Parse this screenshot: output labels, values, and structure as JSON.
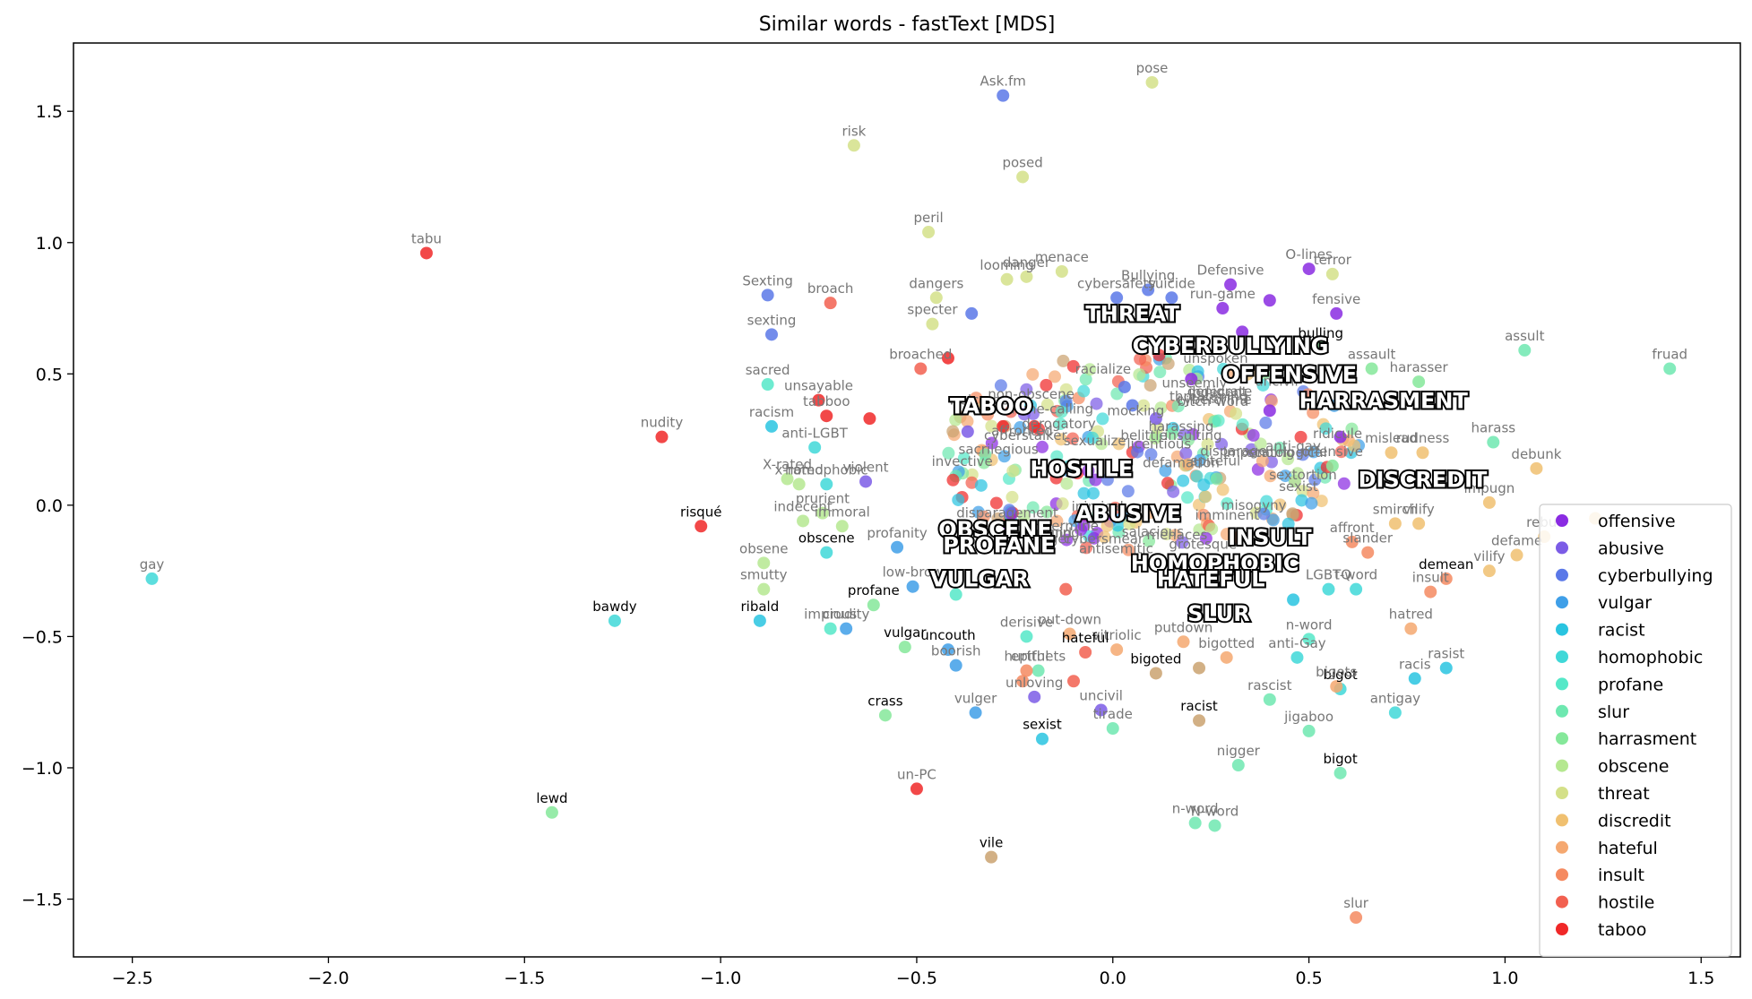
{
  "chart_data": {
    "type": "scatter",
    "title": "Similar words - fastText [MDS]",
    "xlabel": "",
    "ylabel": "",
    "xlim": [
      -2.65,
      1.6
    ],
    "ylim": [
      -1.72,
      1.76
    ],
    "x_ticks": [
      "−2.5",
      "−2.0",
      "−1.5",
      "−1.0",
      "−0.5",
      "0.0",
      "0.5",
      "1.0",
      "1.5"
    ],
    "x_tick_values": [
      -2.5,
      -2.0,
      -1.5,
      -1.0,
      -0.5,
      0.0,
      0.5,
      1.0,
      1.5
    ],
    "y_ticks": [
      "1.5",
      "1.0",
      "0.5",
      "0.0",
      "−0.5",
      "−1.0",
      "−1.5"
    ],
    "y_tick_values": [
      1.5,
      1.0,
      0.5,
      0.0,
      -0.5,
      -1.0,
      -1.5
    ],
    "grid": false,
    "legend_position": "lower-right",
    "series": [
      {
        "name": "offensive",
        "color": "#8a2be2",
        "points": [
          {
            "x": 0.57,
            "y": 0.73,
            "label": "fensive"
          },
          {
            "x": 0.3,
            "y": 0.84,
            "label": "Defensive"
          },
          {
            "x": 0.4,
            "y": 0.78,
            "label": ""
          },
          {
            "x": 0.28,
            "y": 0.75,
            "label": "run-game"
          },
          {
            "x": 0.33,
            "y": 0.66,
            "label": ""
          },
          {
            "x": 0.5,
            "y": 0.9,
            "label": "O-lines"
          },
          {
            "x": 0.58,
            "y": 0.26,
            "label": ""
          },
          {
            "x": 0.4,
            "y": 0.36,
            "label": ""
          },
          {
            "x": 0.19,
            "y": 0.62,
            "label": ""
          },
          {
            "x": 0.2,
            "y": 0.48,
            "label": ""
          }
        ]
      },
      {
        "name": "abusive",
        "color": "#7b5ce6",
        "points": [
          {
            "x": -0.63,
            "y": 0.09,
            "label": "violent"
          },
          {
            "x": -0.2,
            "y": -0.73,
            "label": "unloving"
          },
          {
            "x": -0.03,
            "y": -0.78,
            "label": "uncivil"
          },
          {
            "x": -0.37,
            "y": 0.28,
            "label": ""
          },
          {
            "x": 0.11,
            "y": 0.33,
            "label": ""
          }
        ]
      },
      {
        "name": "cyberbullying",
        "color": "#5a78e8",
        "points": [
          {
            "x": -0.28,
            "y": 1.56,
            "label": "Ask.fm"
          },
          {
            "x": -0.88,
            "y": 0.8,
            "label": "Sexting"
          },
          {
            "x": -0.87,
            "y": 0.65,
            "label": "sexting"
          },
          {
            "x": 0.01,
            "y": 0.79,
            "label": "cybersafety"
          },
          {
            "x": 0.09,
            "y": 0.82,
            "label": "Bullying"
          },
          {
            "x": 0.15,
            "y": 0.79,
            "label": "suicide"
          },
          {
            "x": 0.03,
            "y": 0.45,
            "label": ""
          },
          {
            "x": 0.05,
            "y": 0.38,
            "label": ""
          },
          {
            "x": -0.36,
            "y": 0.73,
            "label": ""
          }
        ]
      },
      {
        "name": "vulgar",
        "color": "#3f9fe8",
        "points": [
          {
            "x": -0.68,
            "y": -0.47,
            "label": "crudity"
          },
          {
            "x": -0.55,
            "y": -0.16,
            "label": "profanity"
          },
          {
            "x": -0.42,
            "y": -0.55,
            "label": "uncouth"
          },
          {
            "x": -0.4,
            "y": -0.61,
            "label": "boorish"
          },
          {
            "x": -0.35,
            "y": -0.79,
            "label": "vulger"
          },
          {
            "x": -0.51,
            "y": -0.31,
            "label": "low-brow"
          }
        ]
      },
      {
        "name": "racist",
        "color": "#29c4e0",
        "points": [
          {
            "x": -0.87,
            "y": 0.3,
            "label": "racism"
          },
          {
            "x": -0.9,
            "y": -0.44,
            "label": "ribald"
          },
          {
            "x": 0.77,
            "y": -0.66,
            "label": "racis"
          },
          {
            "x": 0.85,
            "y": -0.62,
            "label": "rasist"
          },
          {
            "x": 0.46,
            "y": -0.36,
            "label": ""
          },
          {
            "x": -0.18,
            "y": -0.89,
            "label": "sexist"
          }
        ]
      },
      {
        "name": "homophobic",
        "color": "#40d8d8",
        "points": [
          {
            "x": -2.45,
            "y": -0.28,
            "label": "gay"
          },
          {
            "x": -1.27,
            "y": -0.44,
            "label": "bawdy"
          },
          {
            "x": -0.76,
            "y": 0.22,
            "label": "anti-LGBT"
          },
          {
            "x": -0.73,
            "y": 0.08,
            "label": "homophobic"
          },
          {
            "x": -0.73,
            "y": -0.18,
            "label": "obscene"
          },
          {
            "x": 0.55,
            "y": -0.32,
            "label": "LGBTQ"
          },
          {
            "x": 0.58,
            "y": -0.7,
            "label": "bigot"
          },
          {
            "x": 0.72,
            "y": -0.79,
            "label": "antigay"
          },
          {
            "x": 0.47,
            "y": -0.58,
            "label": "anti-Gay"
          },
          {
            "x": 0.62,
            "y": -0.32,
            "label": "t-word"
          }
        ]
      },
      {
        "name": "profane",
        "color": "#55e8c8",
        "points": [
          {
            "x": -0.72,
            "y": -0.47,
            "label": "impious"
          },
          {
            "x": -0.88,
            "y": 0.46,
            "label": "sacred"
          },
          {
            "x": -0.4,
            "y": -0.34,
            "label": ""
          },
          {
            "x": -0.22,
            "y": -0.5,
            "label": "derisive"
          },
          {
            "x": 0.5,
            "y": -0.51,
            "label": "n-word"
          }
        ]
      },
      {
        "name": "slur",
        "color": "#6ee8b0",
        "points": [
          {
            "x": 1.05,
            "y": 0.59,
            "label": "assult"
          },
          {
            "x": 1.42,
            "y": 0.52,
            "label": "fruad"
          },
          {
            "x": 0.97,
            "y": 0.24,
            "label": "harass"
          },
          {
            "x": 0.4,
            "y": -0.74,
            "label": "rascist"
          },
          {
            "x": 0.5,
            "y": -0.86,
            "label": "jigaboo"
          },
          {
            "x": 0.32,
            "y": -0.99,
            "label": "nigger"
          },
          {
            "x": 0.21,
            "y": -1.21,
            "label": "n-word"
          },
          {
            "x": 0.26,
            "y": -1.22,
            "label": "N-word"
          },
          {
            "x": 0.58,
            "y": -1.02,
            "label": "bigot"
          },
          {
            "x": 0.0,
            "y": -0.85,
            "label": "tirade"
          },
          {
            "x": -0.19,
            "y": -0.63,
            "label": "epithets"
          }
        ]
      },
      {
        "name": "harrasment",
        "color": "#85e89a",
        "points": [
          {
            "x": -1.43,
            "y": -1.17,
            "label": "lewd"
          },
          {
            "x": -0.58,
            "y": -0.8,
            "label": "crass"
          },
          {
            "x": -0.61,
            "y": -0.38,
            "label": "profane"
          },
          {
            "x": -0.53,
            "y": -0.54,
            "label": "vulgar"
          },
          {
            "x": 0.78,
            "y": 0.47,
            "label": "harasser"
          },
          {
            "x": 0.66,
            "y": 0.52,
            "label": "assault"
          },
          {
            "x": 0.56,
            "y": 0.15,
            "label": "offensive"
          },
          {
            "x": 0.53,
            "y": 0.6,
            "label": "bulling"
          }
        ]
      },
      {
        "name": "obscene",
        "color": "#b5e890",
        "points": [
          {
            "x": -0.89,
            "y": -0.22,
            "label": "obsene"
          },
          {
            "x": -0.89,
            "y": -0.32,
            "label": "smutty"
          },
          {
            "x": -0.8,
            "y": 0.08,
            "label": "x-rated"
          },
          {
            "x": -0.83,
            "y": 0.1,
            "label": "X-rated"
          },
          {
            "x": -0.79,
            "y": -0.06,
            "label": "indecent"
          },
          {
            "x": -0.69,
            "y": -0.08,
            "label": "immoral"
          },
          {
            "x": -0.74,
            "y": -0.03,
            "label": "prurient"
          }
        ]
      },
      {
        "name": "threat",
        "color": "#d4e088",
        "points": [
          {
            "x": 0.1,
            "y": 1.61,
            "label": "pose"
          },
          {
            "x": -0.66,
            "y": 1.37,
            "label": "risk"
          },
          {
            "x": -0.23,
            "y": 1.25,
            "label": "posed"
          },
          {
            "x": -0.47,
            "y": 1.04,
            "label": "peril"
          },
          {
            "x": -0.13,
            "y": 0.89,
            "label": "menace"
          },
          {
            "x": -0.27,
            "y": 0.86,
            "label": "looming"
          },
          {
            "x": -0.22,
            "y": 0.87,
            "label": "danger"
          },
          {
            "x": -0.45,
            "y": 0.79,
            "label": "dangers"
          },
          {
            "x": -0.46,
            "y": 0.69,
            "label": "specter"
          },
          {
            "x": 0.56,
            "y": 0.88,
            "label": "terror"
          }
        ]
      },
      {
        "name": "discredit",
        "color": "#f0c070",
        "points": [
          {
            "x": 1.08,
            "y": 0.14,
            "label": "debunk"
          },
          {
            "x": 0.79,
            "y": 0.2,
            "label": "rudness"
          },
          {
            "x": 0.71,
            "y": 0.2,
            "label": "mislead"
          },
          {
            "x": 0.78,
            "y": -0.07,
            "label": "vilify"
          },
          {
            "x": 0.96,
            "y": 0.01,
            "label": "impugn"
          },
          {
            "x": 0.96,
            "y": -0.25,
            "label": "vilify"
          },
          {
            "x": 1.03,
            "y": -0.19,
            "label": "defame"
          },
          {
            "x": 1.1,
            "y": -0.12,
            "label": "rebut"
          },
          {
            "x": 1.23,
            "y": -0.05,
            "label": ""
          },
          {
            "x": 0.72,
            "y": -0.07,
            "label": "smirch"
          }
        ]
      },
      {
        "name": "hateful",
        "color": "#f5a870",
        "points": [
          {
            "x": 0.76,
            "y": -0.47,
            "label": "hatred"
          },
          {
            "x": 0.57,
            "y": -0.69,
            "label": "bigots"
          },
          {
            "x": 0.29,
            "y": -0.58,
            "label": "bigotted"
          },
          {
            "x": 0.18,
            "y": -0.52,
            "label": "putdown"
          },
          {
            "x": 0.01,
            "y": -0.55,
            "label": "vitriolic"
          },
          {
            "x": -0.11,
            "y": -0.49,
            "label": "put-down"
          }
        ]
      },
      {
        "name": "insult",
        "color": "#f58a60",
        "points": [
          {
            "x": 0.62,
            "y": -1.57,
            "label": "slur"
          },
          {
            "x": 0.81,
            "y": -0.33,
            "label": "insult"
          },
          {
            "x": 0.85,
            "y": -0.28,
            "label": "demean"
          },
          {
            "x": 0.65,
            "y": -0.18,
            "label": "slander"
          },
          {
            "x": 0.61,
            "y": -0.14,
            "label": "affront"
          },
          {
            "x": -0.22,
            "y": -0.63,
            "label": "hurtful"
          },
          {
            "x": -0.23,
            "y": -0.67,
            "label": ""
          }
        ]
      },
      {
        "name": "hostile",
        "color": "#f26050",
        "points": [
          {
            "x": -0.72,
            "y": 0.77,
            "label": "broach"
          },
          {
            "x": -0.49,
            "y": 0.52,
            "label": "broached"
          },
          {
            "x": -0.07,
            "y": -0.56,
            "label": "hateful"
          },
          {
            "x": -0.1,
            "y": -0.67,
            "label": ""
          },
          {
            "x": -0.12,
            "y": -0.32,
            "label": ""
          }
        ]
      },
      {
        "name": "taboo",
        "color": "#f02828",
        "points": [
          {
            "x": -1.75,
            "y": 0.96,
            "label": "tabu"
          },
          {
            "x": -1.15,
            "y": 0.26,
            "label": "nudity"
          },
          {
            "x": -1.05,
            "y": -0.08,
            "label": "risqué"
          },
          {
            "x": -0.5,
            "y": -1.08,
            "label": "un-PC"
          },
          {
            "x": -0.75,
            "y": 0.4,
            "label": "unsayable"
          },
          {
            "x": -0.73,
            "y": 0.34,
            "label": "tabboo"
          },
          {
            "x": -0.62,
            "y": 0.33,
            "label": ""
          },
          {
            "x": -0.42,
            "y": 0.56,
            "label": ""
          },
          {
            "x": -0.28,
            "y": 0.3,
            "label": ""
          },
          {
            "x": -0.2,
            "y": 0.3,
            "label": ""
          }
        ]
      },
      {
        "name": "keyword-extras",
        "color": "#caa270",
        "points": [
          {
            "x": -0.31,
            "y": -1.34,
            "label": "vile"
          },
          {
            "x": 0.22,
            "y": -0.82,
            "label": "racist"
          },
          {
            "x": 0.11,
            "y": -0.64,
            "label": "bigoted"
          },
          {
            "x": 0.22,
            "y": -0.62,
            "label": ""
          }
        ]
      }
    ],
    "key_labels": [
      {
        "text": "THREAT",
        "x": 0.05,
        "y": 0.7
      },
      {
        "text": "CYBERBULLYING",
        "x": 0.3,
        "y": 0.58
      },
      {
        "text": "OFFENSIVE",
        "x": 0.45,
        "y": 0.47
      },
      {
        "text": "HARRASMENT",
        "x": 0.69,
        "y": 0.37
      },
      {
        "text": "TABOO",
        "x": -0.31,
        "y": 0.35
      },
      {
        "text": "HOSTILE",
        "x": -0.08,
        "y": 0.11
      },
      {
        "text": "DISCREDIT",
        "x": 0.79,
        "y": 0.07
      },
      {
        "text": "ABUSIVE",
        "x": 0.04,
        "y": -0.06
      },
      {
        "text": "OBSCENE",
        "x": -0.3,
        "y": -0.12
      },
      {
        "text": "PROFANE",
        "x": -0.29,
        "y": -0.18
      },
      {
        "text": "INSULT",
        "x": 0.4,
        "y": -0.15
      },
      {
        "text": "HOMOPHOBIC",
        "x": 0.26,
        "y": -0.25
      },
      {
        "text": "VULGAR",
        "x": -0.34,
        "y": -0.31
      },
      {
        "text": "HATEFUL",
        "x": 0.25,
        "y": -0.31
      },
      {
        "text": "SLUR",
        "x": 0.27,
        "y": -0.44
      }
    ],
    "dense_cluster_labels": [
      "harassing",
      "sexualize",
      "racialize",
      "unspoken",
      "misogyny",
      "threatening",
      "inimical",
      "affronted",
      "derogatory",
      "disparage",
      "disparagement",
      "ridicule",
      "insulting",
      "cybersmear",
      "undermine",
      "defamation",
      "mocking",
      "name-calling",
      "belittle",
      "denigrate",
      "spiteful",
      "invective",
      "uncivil",
      "unkind",
      "sexist",
      "bitch-word",
      "cyberstalker",
      "cybercrime",
      "menaces",
      "danger",
      "imminent",
      "impending",
      "sextortion",
      "antisemitic",
      "welcome",
      "non-obscene",
      "anti-gay",
      "scatological",
      "sacrilegious",
      "indecent",
      "unseemly",
      "licentious",
      "salacious",
      "grotesque",
      "demeaning"
    ]
  }
}
